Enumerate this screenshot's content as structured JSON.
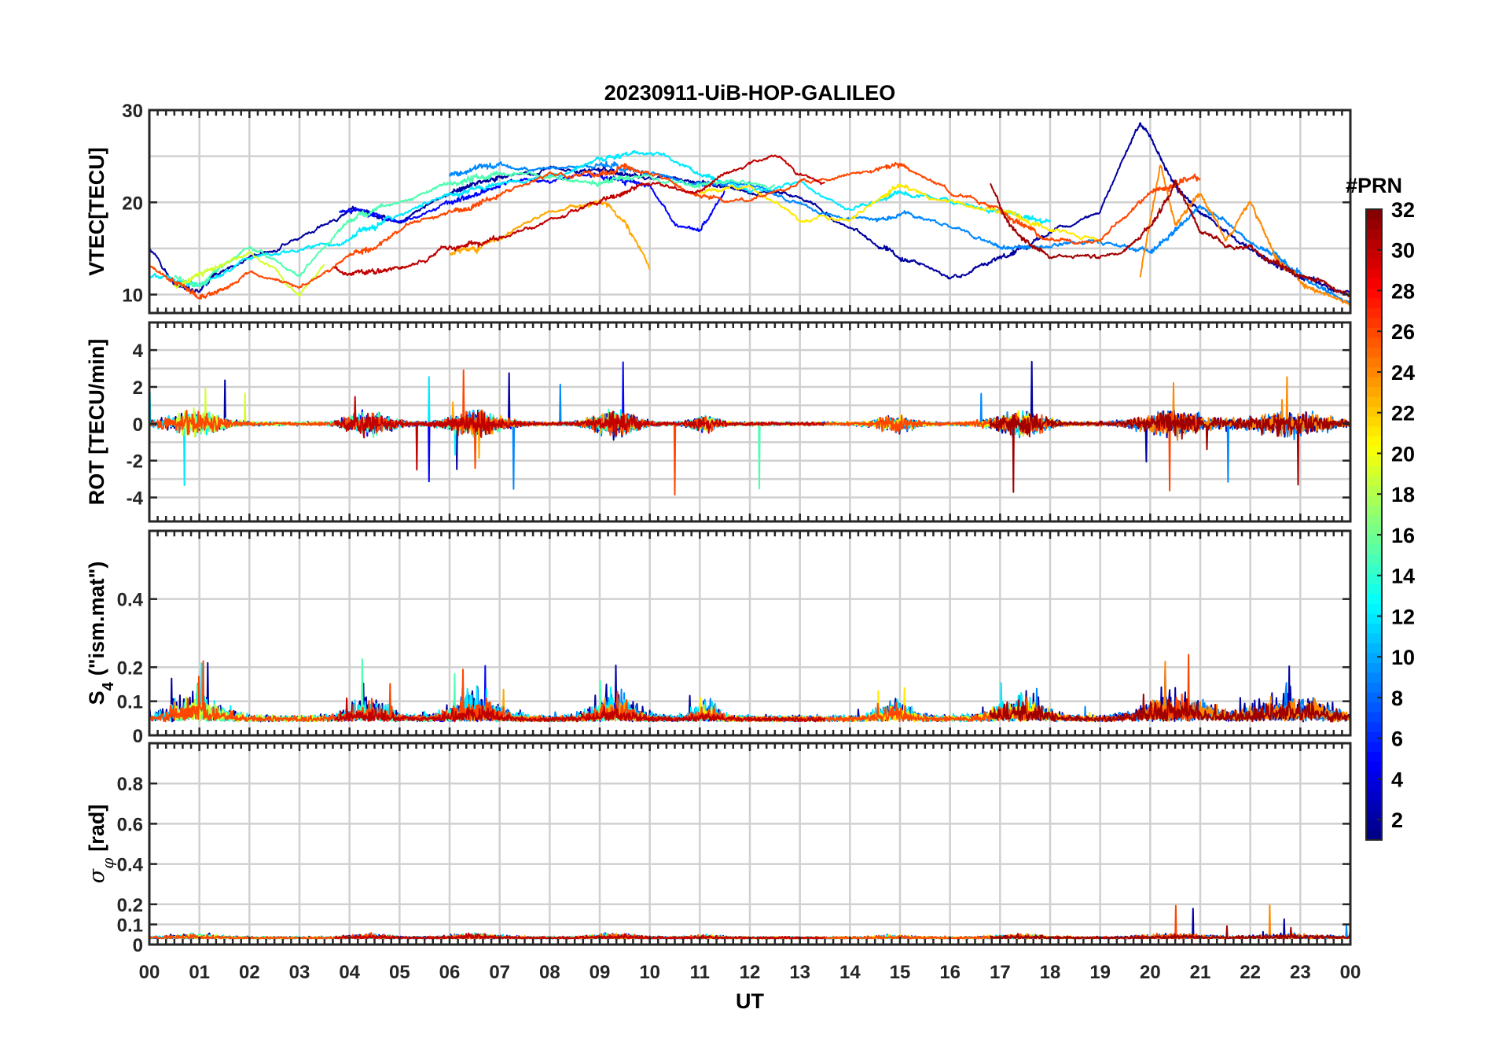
{
  "chart_data": {
    "type": "line",
    "title": "20230911-UiB-HOP-GALILEO",
    "xlabel": "UT",
    "x_unit": "hours",
    "x_range": [
      0,
      24
    ],
    "x_tick_labels": [
      "00",
      "01",
      "02",
      "03",
      "04",
      "05",
      "06",
      "07",
      "08",
      "09",
      "10",
      "11",
      "12",
      "13",
      "14",
      "15",
      "16",
      "17",
      "18",
      "19",
      "20",
      "21",
      "22",
      "23",
      "00"
    ],
    "colorbar": {
      "label": "#PRN",
      "range": [
        1,
        32
      ],
      "tick_labels": [
        "2",
        "4",
        "6",
        "8",
        "10",
        "12",
        "14",
        "16",
        "18",
        "20",
        "22",
        "24",
        "26",
        "28",
        "30",
        "32"
      ],
      "colormap": "jet"
    },
    "panels": [
      {
        "id": "vtec",
        "ylabel": "VTEC[TECU]",
        "ylim": [
          8,
          30
        ],
        "yticks": [
          10,
          20,
          30
        ],
        "series": [
          {
            "prn": 2,
            "x": [
              0,
              0.5,
              1,
              1.5,
              2,
              3,
              4,
              5,
              6,
              7,
              8,
              9,
              10,
              11,
              12,
              13,
              14,
              15,
              16,
              17,
              18,
              19,
              19.5,
              19.8,
              20,
              20.5,
              21,
              22,
              23,
              24
            ],
            "y": [
              15,
              11,
              10,
              13,
              14,
              16,
              19,
              18,
              21,
              23,
              23.5,
              23.5,
              23,
              22,
              21,
              21,
              17,
              14,
              12,
              14,
              17,
              19,
              25,
              28.5,
              27,
              22,
              19,
              15,
              12,
              10
            ]
          },
          {
            "prn": 5,
            "x": [
              3.8,
              4.5,
              5,
              6,
              7,
              8,
              9,
              10,
              10.5,
              11,
              11.5
            ],
            "y": [
              19,
              19,
              18,
              20,
              22,
              22.5,
              23,
              22,
              18,
              17,
              21
            ]
          },
          {
            "prn": 9,
            "x": [
              6,
              7,
              8,
              9,
              10,
              11,
              12,
              13,
              14,
              15,
              16,
              17,
              18,
              19,
              20,
              21,
              22,
              23,
              24
            ],
            "y": [
              23,
              24,
              23.5,
              24,
              23,
              22,
              22,
              20,
              18,
              18.5,
              17,
              15,
              15,
              16,
              14,
              20,
              16,
              12,
              9
            ]
          },
          {
            "prn": 12,
            "x": [
              0,
              1,
              2,
              3,
              4,
              5,
              6,
              7,
              8,
              9,
              9.5,
              10,
              11,
              12,
              13,
              14,
              15,
              16,
              17,
              18
            ],
            "y": [
              12,
              11,
              14,
              15,
              16,
              19,
              21,
              22,
              23,
              24.5,
              25.5,
              25,
              23,
              21,
              22,
              19,
              21,
              20,
              19,
              18
            ]
          },
          {
            "prn": 15,
            "x": [
              0.5,
              1,
              2,
              3,
              3.5,
              4,
              5,
              6,
              7,
              8,
              9,
              10,
              11,
              12,
              12.5
            ],
            "y": [
              12,
              11,
              15,
              12,
              15,
              18,
              20,
              22,
              23,
              22.5,
              22,
              23,
              22,
              22,
              22
            ]
          },
          {
            "prn": 19,
            "x": [
              0.5,
              1,
              2,
              2.5,
              3,
              3.5
            ],
            "y": [
              11,
              12,
              14.5,
              13,
              10,
              13
            ]
          },
          {
            "prn": 21,
            "x": [
              11,
              12,
              13,
              14,
              15,
              16,
              17,
              18,
              19
            ],
            "y": [
              21,
              22,
              18,
              18,
              22,
              20,
              19,
              17,
              16
            ]
          },
          {
            "prn": 23,
            "x": [
              6,
              6.5,
              7,
              8,
              9,
              9.5,
              10
            ],
            "y": [
              14.5,
              15,
              16,
              19,
              20,
              18,
              13
            ]
          },
          {
            "prn": 24,
            "x": [
              19.8,
              20.2,
              20.5,
              21,
              21.5,
              22,
              22.5,
              23,
              24
            ],
            "y": [
              12,
              24,
              18,
              21,
              16,
              20,
              14,
              11,
              9
            ]
          },
          {
            "prn": 26,
            "x": [
              0,
              1,
              2,
              3,
              4,
              5,
              6,
              7,
              8,
              9,
              9.5,
              10,
              11,
              12,
              13,
              14,
              15,
              16,
              17,
              18,
              19,
              20,
              21
            ],
            "y": [
              13,
              10,
              12,
              11,
              14,
              17,
              19,
              21,
              23,
              23,
              24,
              23,
              21,
              20,
              22,
              23,
              24,
              21,
              19,
              16,
              16,
              21,
              23
            ]
          },
          {
            "prn": 30,
            "x": [
              3.7,
              4,
              5,
              6,
              7,
              8,
              9,
              10,
              11,
              11.5,
              12,
              12.5,
              13,
              13.5
            ],
            "y": [
              13,
              12,
              13,
              15,
              16,
              18,
              20,
              22,
              21,
              23,
              24,
              25,
              23,
              22
            ]
          },
          {
            "prn": 31,
            "x": [
              16.8,
              17.2,
              18,
              19,
              19.5,
              20,
              20.5,
              21,
              21.5,
              22,
              23,
              24
            ],
            "y": [
              22,
              17,
              14,
              14,
              15,
              17,
              22,
              17,
              15,
              15,
              12,
              10
            ]
          }
        ]
      },
      {
        "id": "rot",
        "ylabel": "ROT [TECU/min]",
        "ylim": [
          -5.3,
          5.5
        ],
        "yticks": [
          -4,
          -2,
          0,
          2,
          4
        ]
      },
      {
        "id": "s4",
        "ylabel": "S4 (\"ism.mat\")",
        "ylabel_main": "S",
        "ylabel_sub": "4",
        "ylabel_rest": "(\"ism.mat\")",
        "ylim": [
          0,
          0.6
        ],
        "yticks": [
          0,
          0.1,
          0.2,
          0.4
        ],
        "ytick_labels": [
          "0",
          "0.1",
          "0.2",
          "0.4"
        ]
      },
      {
        "id": "sigphi",
        "ylabel": "σφ[rad]",
        "ylabel_main": "σ",
        "ylabel_sub": "φ",
        "ylabel_rest": "[rad]",
        "ylim": [
          0,
          1
        ],
        "yticks": [
          0,
          0.1,
          0.2,
          0.4,
          0.6,
          0.8
        ],
        "ytick_labels": [
          "0",
          "0.1",
          "0.2",
          "0.4",
          "0.6",
          "0.8"
        ]
      }
    ]
  }
}
